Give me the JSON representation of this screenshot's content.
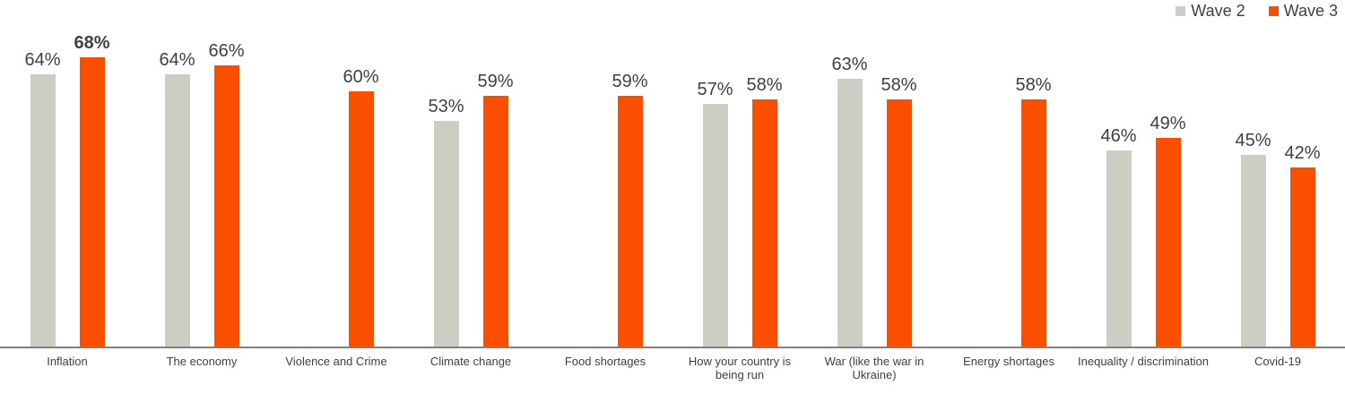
{
  "legend": {
    "items": [
      {
        "label": "Wave 2",
        "color": "#CDCDC3"
      },
      {
        "label": "Wave 3",
        "color": "#FA4E00"
      }
    ]
  },
  "chart_data": {
    "type": "bar",
    "categories": [
      "Inflation",
      "The economy",
      "Violence and Crime",
      "Climate change",
      "Food shortages",
      "How your country is\nbeing run",
      "War (like the war in\nUkraine)",
      "Energy shortages",
      "Inequality / discrimination",
      "Covid-19"
    ],
    "series": [
      {
        "name": "Wave 2",
        "color": "#CDCDC3",
        "values": [
          64,
          64,
          null,
          53,
          null,
          57,
          63,
          null,
          46,
          45
        ]
      },
      {
        "name": "Wave 3",
        "color": "#FA4E00",
        "values": [
          68,
          66,
          60,
          59,
          59,
          58,
          58,
          58,
          49,
          42
        ]
      }
    ],
    "value_suffix": "%",
    "bold_label": {
      "series": "Wave 3",
      "category": "Inflation"
    },
    "legend_position": "top-right",
    "grid": false,
    "axis_line_color": "#808080",
    "value_label_color": "#3F3F3F",
    "category_label_color": "#404040"
  }
}
